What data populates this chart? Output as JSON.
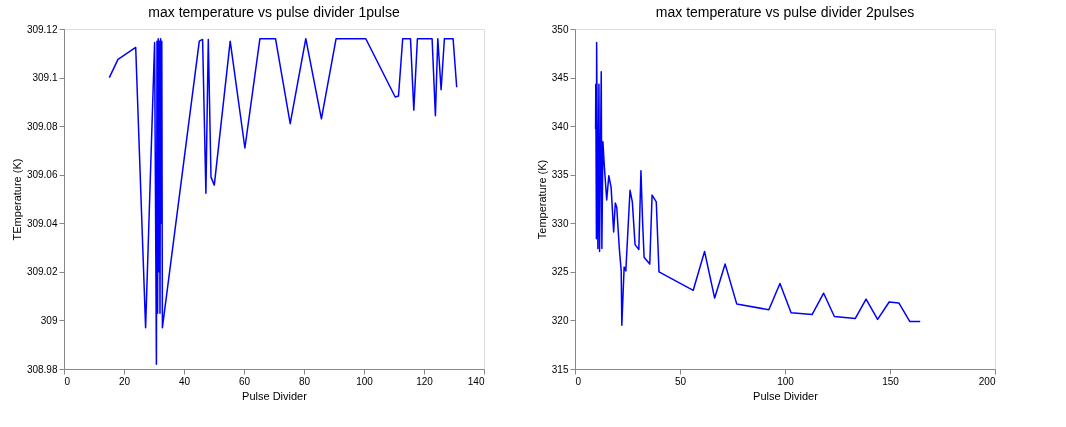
{
  "chart_data": [
    {
      "type": "line",
      "title": "max temperature vs pulse divider 1pulse",
      "xlabel": "Pulse Divider",
      "ylabel": "TEmperature (K)",
      "x": [
        15.1,
        18.0,
        23.9,
        27.2,
        30.2,
        30.5,
        30.8,
        31.0,
        31.2,
        31.4,
        31.6,
        31.8,
        32.0,
        32.2,
        32.4,
        32.6,
        32.8,
        45.1,
        46.2,
        47.3,
        48.1,
        49.0,
        50.1,
        55.4,
        60.3,
        65.3,
        70.5,
        75.4,
        80.6,
        85.8,
        90.7,
        100.6,
        110.4,
        111.5,
        112.9,
        115.5,
        116.6,
        117.8,
        122.7,
        123.8,
        124.6,
        125.7,
        126.8,
        129.7,
        130.9
      ],
      "series": [
        {
          "color": "#0000ff",
          "values": [
            309.1,
            309.1075,
            309.1124,
            308.997,
            309.1144,
            309.05,
            308.982,
            309.115,
            309.003,
            309.116,
            309.02,
            309.115,
            309.003,
            309.116,
            309.04,
            309.115,
            308.997,
            309.115,
            309.1157,
            309.0524,
            309.1157,
            309.059,
            309.0557,
            309.115,
            309.071,
            309.116,
            309.116,
            309.081,
            309.116,
            309.083,
            309.116,
            309.116,
            309.092,
            309.0924,
            309.116,
            309.116,
            309.0866,
            309.116,
            309.116,
            309.0843,
            309.116,
            309.095,
            309.116,
            309.116,
            309.096
          ]
        }
      ],
      "xlim": [
        0,
        140
      ],
      "xticks": [
        0,
        20,
        40,
        60,
        80,
        100,
        120,
        140
      ],
      "ylim": [
        308.98,
        309.12
      ],
      "yticks": [
        308.98,
        309,
        309.02,
        309.04,
        309.06,
        309.08,
        309.1,
        309.12
      ],
      "grid": false,
      "legend": false,
      "marker": "none",
      "line_style": "solid"
    },
    {
      "type": "line",
      "title": "max temperature vs pulse divider 2pulses",
      "xlabel": "Pulse Divider",
      "ylabel": "Temperature (K)",
      "x": [
        9.8,
        9.9,
        10.2,
        10.3,
        10.9,
        11.4,
        11.7,
        12.5,
        12.8,
        13.3,
        13.9,
        15.1,
        16.1,
        17.2,
        18.4,
        19.2,
        19.9,
        21.1,
        22.0,
        22.3,
        23.4,
        24.2,
        26.2,
        27.3,
        28.6,
        30.4,
        31.4,
        32.2,
        32.9,
        35.6,
        36.7,
        38.7,
        40.0,
        56.3,
        61.7,
        66.5,
        71.5,
        77.0,
        92.3,
        97.6,
        102.9,
        112.9,
        118.4,
        123.5,
        133.5,
        138.6,
        144.1,
        149.6,
        154.2,
        159.4,
        164.4
      ],
      "series": [
        {
          "color": "#0000ff",
          "values": [
            339.7,
            344.3,
            328.4,
            348.6,
            327.4,
            344.3,
            327.1,
            345.6,
            327.4,
            338.4,
            336.1,
            332.4,
            334.9,
            333.7,
            329.1,
            332.1,
            331.6,
            327.4,
            325.1,
            319.5,
            325.5,
            325.1,
            333.4,
            332.2,
            327.8,
            327.3,
            335.4,
            330.1,
            326.5,
            325.8,
            332.9,
            332.2,
            325.0,
            323.1,
            327.1,
            322.3,
            325.8,
            321.7,
            321.1,
            323.8,
            320.8,
            320.6,
            322.8,
            320.4,
            320.2,
            322.2,
            320.1,
            321.9,
            321.8,
            319.9,
            319.9
          ]
        }
      ],
      "xlim": [
        0,
        200
      ],
      "xticks": [
        0,
        50,
        100,
        150,
        200
      ],
      "ylim": [
        315,
        350
      ],
      "yticks": [
        315,
        320,
        325,
        330,
        335,
        340,
        345,
        350
      ],
      "grid": false,
      "legend": false,
      "marker": "none",
      "line_style": "solid"
    }
  ]
}
